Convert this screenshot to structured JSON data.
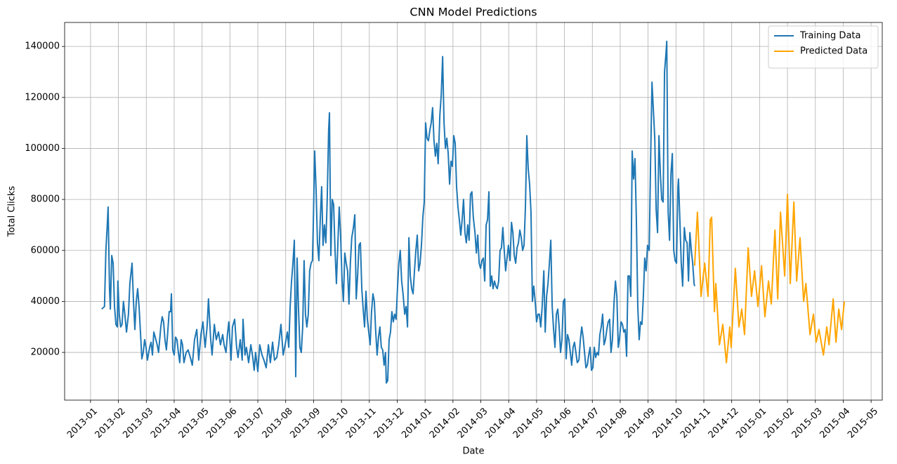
{
  "chart_data": {
    "type": "line",
    "title": "CNN Model Predictions",
    "x_label": "Date",
    "y_label": "Total Clicks",
    "xlim": [
      -0.93,
      28.4
    ],
    "ylim": [
      1300,
      149400
    ],
    "xticks": [
      {
        "value": 0,
        "label": "2013-01"
      },
      {
        "value": 1,
        "label": "2013-02"
      },
      {
        "value": 2,
        "label": "2013-03"
      },
      {
        "value": 3,
        "label": "2013-04"
      },
      {
        "value": 4,
        "label": "2013-05"
      },
      {
        "value": 5,
        "label": "2013-06"
      },
      {
        "value": 6,
        "label": "2013-07"
      },
      {
        "value": 7,
        "label": "2013-08"
      },
      {
        "value": 8,
        "label": "2013-09"
      },
      {
        "value": 9,
        "label": "2013-10"
      },
      {
        "value": 10,
        "label": "2013-11"
      },
      {
        "value": 11,
        "label": "2013-12"
      },
      {
        "value": 12,
        "label": "2014-01"
      },
      {
        "value": 13,
        "label": "2014-02"
      },
      {
        "value": 14,
        "label": "2014-03"
      },
      {
        "value": 15,
        "label": "2014-04"
      },
      {
        "value": 16,
        "label": "2014-05"
      },
      {
        "value": 17,
        "label": "2014-06"
      },
      {
        "value": 18,
        "label": "2014-07"
      },
      {
        "value": 19,
        "label": "2014-08"
      },
      {
        "value": 20,
        "label": "2014-09"
      },
      {
        "value": 21,
        "label": "2014-10"
      },
      {
        "value": 22,
        "label": "2014-11"
      },
      {
        "value": 23,
        "label": "2014-12"
      },
      {
        "value": 24,
        "label": "2015-01"
      },
      {
        "value": 25,
        "label": "2015-02"
      },
      {
        "value": 26,
        "label": "2015-03"
      },
      {
        "value": 27,
        "label": "2015-04"
      },
      {
        "value": 28,
        "label": "2015-05"
      }
    ],
    "yticks": [
      20000,
      40000,
      60000,
      80000,
      100000,
      120000,
      140000
    ],
    "grid": true,
    "legend": "upper right",
    "series": [
      {
        "name": "Training Data",
        "color": "#1f77b4",
        "x": [
          0.4,
          0.5,
          0.55,
          0.6,
          0.63,
          0.68,
          0.71,
          0.76,
          0.81,
          0.86,
          0.91,
          0.96,
          0.98,
          1.03,
          1.08,
          1.13,
          1.18,
          1.23,
          1.29,
          1.36,
          1.41,
          1.49,
          1.54,
          1.59,
          1.64,
          1.69,
          1.74,
          1.79,
          1.84,
          1.89,
          1.94,
          1.99,
          2.04,
          2.12,
          2.17,
          2.22,
          2.27,
          2.32,
          2.39,
          2.44,
          2.52,
          2.57,
          2.62,
          2.67,
          2.72,
          2.77,
          2.82,
          2.87,
          2.9,
          2.95,
          3.0,
          3.05,
          3.1,
          3.15,
          3.2,
          3.25,
          3.3,
          3.35,
          3.43,
          3.5,
          3.58,
          3.65,
          3.73,
          3.81,
          3.88,
          3.96,
          4.03,
          4.11,
          4.18,
          4.23,
          4.31,
          4.36,
          4.44,
          4.51,
          4.59,
          4.66,
          4.74,
          4.79,
          4.86,
          4.91,
          4.96,
          5.04,
          5.09,
          5.17,
          5.24,
          5.29,
          5.37,
          5.44,
          5.47,
          5.54,
          5.59,
          5.67,
          5.75,
          5.82,
          5.87,
          5.92,
          6.0,
          6.07,
          6.15,
          6.22,
          6.3,
          6.38,
          6.45,
          6.53,
          6.6,
          6.68,
          6.75,
          6.83,
          6.91,
          6.98,
          7.06,
          7.11,
          7.16,
          7.21,
          7.26,
          7.31,
          7.36,
          7.41,
          7.46,
          7.51,
          7.56,
          7.61,
          7.66,
          7.71,
          7.76,
          7.81,
          7.86,
          7.91,
          7.96,
          7.99,
          8.04,
          8.09,
          8.14,
          8.19,
          8.24,
          8.29,
          8.34,
          8.39,
          8.44,
          8.49,
          8.54,
          8.57,
          8.62,
          8.67,
          8.72,
          8.77,
          8.82,
          8.87,
          8.92,
          8.97,
          9.02,
          9.07,
          9.12,
          9.17,
          9.22,
          9.27,
          9.32,
          9.37,
          9.43,
          9.48,
          9.53,
          9.58,
          9.63,
          9.68,
          9.73,
          9.78,
          9.83,
          9.88,
          9.93,
          9.98,
          10.03,
          10.08,
          10.13,
          10.18,
          10.23,
          10.28,
          10.33,
          10.38,
          10.43,
          10.48,
          10.53,
          10.58,
          10.61,
          10.66,
          10.71,
          10.76,
          10.81,
          10.86,
          10.91,
          10.96,
          11.01,
          11.06,
          11.11,
          11.16,
          11.21,
          11.27,
          11.32,
          11.37,
          11.42,
          11.47,
          11.52,
          11.57,
          11.62,
          11.67,
          11.72,
          11.77,
          11.82,
          11.87,
          11.92,
          11.97,
          12.02,
          12.07,
          12.12,
          12.17,
          12.22,
          12.27,
          12.32,
          12.37,
          12.42,
          12.47,
          12.53,
          12.58,
          12.63,
          12.68,
          12.73,
          12.78,
          12.83,
          12.88,
          12.93,
          12.98,
          13.03,
          13.08,
          13.13,
          13.18,
          13.23,
          13.28,
          13.33,
          13.38,
          13.43,
          13.48,
          13.53,
          13.58,
          13.63,
          13.68,
          13.73,
          13.79,
          13.84,
          13.89,
          13.94,
          13.99,
          14.04,
          14.09,
          14.14,
          14.19,
          14.24,
          14.29,
          14.34,
          14.39,
          14.44,
          14.49,
          14.54,
          14.59,
          14.64,
          14.69,
          14.74,
          14.79,
          14.84,
          14.89,
          14.94,
          14.99,
          15.05,
          15.1,
          15.15,
          15.2,
          15.25,
          15.3,
          15.35,
          15.4,
          15.45,
          15.5,
          15.55,
          15.6,
          15.65,
          15.7,
          15.75,
          15.8,
          15.85,
          15.9,
          15.95,
          16.0,
          16.05,
          16.1,
          16.15,
          16.2,
          16.26,
          16.31,
          16.36,
          16.41,
          16.46,
          16.51,
          16.56,
          16.61,
          16.66,
          16.71,
          16.76,
          16.81,
          16.86,
          16.91,
          16.96,
          17.01,
          17.06,
          17.11,
          17.16,
          17.21,
          17.26,
          17.31,
          17.36,
          17.41,
          17.46,
          17.52,
          17.57,
          17.62,
          17.67,
          17.72,
          17.77,
          17.82,
          17.87,
          17.92,
          17.97,
          18.02,
          18.07,
          18.12,
          18.17,
          18.22,
          18.27,
          18.32,
          18.37,
          18.42,
          18.47,
          18.52,
          18.57,
          18.62,
          18.67,
          18.72,
          18.78,
          18.83,
          18.88,
          18.93,
          18.98,
          19.03,
          19.08,
          19.13,
          19.18,
          19.23,
          19.28,
          19.33,
          19.38,
          19.43,
          19.48,
          19.53,
          19.58,
          19.63,
          19.68,
          19.73,
          19.78,
          19.83,
          19.88,
          19.93,
          19.98,
          20.04,
          20.09,
          20.14,
          20.19,
          20.24,
          20.29,
          20.34,
          20.39,
          20.44,
          20.49,
          20.54,
          20.59,
          20.64,
          20.67,
          20.72,
          20.77,
          20.82,
          20.87,
          20.92,
          20.97,
          21.02,
          21.07,
          21.09,
          21.14,
          21.19,
          21.24,
          21.3,
          21.35,
          21.4,
          21.45,
          21.5,
          21.55,
          21.6,
          21.65,
          21.67
        ],
        "values": [
          37000,
          38000,
          60000,
          70000,
          77000,
          45000,
          37000,
          58000,
          55000,
          38000,
          31000,
          30000,
          48000,
          35000,
          30000,
          31000,
          40000,
          35000,
          28000,
          35000,
          47000,
          55000,
          40000,
          29000,
          40000,
          45000,
          38000,
          28000,
          17500,
          20000,
          25000,
          22000,
          17000,
          22000,
          24000,
          19000,
          28000,
          26000,
          23000,
          20000,
          30000,
          34000,
          32000,
          25000,
          21000,
          28000,
          36000,
          36000,
          43000,
          21000,
          19000,
          26000,
          25000,
          20000,
          16000,
          25000,
          23000,
          16000,
          20000,
          21000,
          18000,
          15000,
          25000,
          29000,
          17000,
          27000,
          32000,
          22000,
          30000,
          41000,
          25000,
          19000,
          31000,
          25000,
          28000,
          23000,
          27000,
          23000,
          20000,
          27000,
          32000,
          17000,
          30000,
          33000,
          22000,
          18000,
          25000,
          17000,
          33000,
          19000,
          22000,
          16000,
          23000,
          18000,
          13000,
          20000,
          12500,
          23000,
          19000,
          17000,
          14000,
          23000,
          16000,
          24000,
          17000,
          18000,
          23000,
          31000,
          19000,
          23000,
          28000,
          22000,
          38000,
          48000,
          55000,
          64000,
          10500,
          57000,
          37000,
          22000,
          20000,
          30000,
          56000,
          35000,
          30000,
          35000,
          52000,
          55000,
          56000,
          70000,
          99000,
          84000,
          63000,
          56000,
          72000,
          85000,
          62000,
          70000,
          63000,
          80000,
          107000,
          114000,
          58000,
          80000,
          78000,
          60000,
          47000,
          62000,
          77000,
          66000,
          49000,
          40000,
          59000,
          55000,
          52000,
          39000,
          55000,
          65000,
          69000,
          74000,
          41000,
          50000,
          62000,
          63000,
          45000,
          37000,
          30000,
          44000,
          33000,
          28000,
          23000,
          36000,
          43000,
          40000,
          28000,
          19000,
          26000,
          30000,
          22000,
          21000,
          15000,
          20000,
          8000,
          9000,
          25000,
          28000,
          36000,
          32000,
          35000,
          33000,
          45000,
          55000,
          60000,
          48000,
          43000,
          35000,
          38000,
          30000,
          65000,
          50000,
          45000,
          43000,
          52000,
          60000,
          66000,
          52000,
          55000,
          62000,
          73000,
          79000,
          110000,
          104000,
          103000,
          107000,
          110000,
          116000,
          103000,
          97000,
          102000,
          94000,
          113000,
          121000,
          136000,
          110000,
          100000,
          104000,
          98000,
          86000,
          95000,
          93000,
          105000,
          102000,
          85000,
          77000,
          72000,
          66000,
          72000,
          80000,
          67000,
          63000,
          70000,
          64000,
          82000,
          83000,
          73000,
          67000,
          59000,
          66000,
          55000,
          53000,
          56000,
          57000,
          48000,
          70000,
          72000,
          83000,
          46000,
          50000,
          45000,
          48000,
          46000,
          45000,
          48000,
          60000,
          61000,
          69000,
          60000,
          52000,
          57000,
          62000,
          56000,
          71000,
          67000,
          58000,
          55000,
          61000,
          63000,
          68000,
          65000,
          60000,
          62000,
          77000,
          105000,
          92000,
          86000,
          75000,
          40000,
          46000,
          40000,
          32000,
          35000,
          35000,
          30000,
          38000,
          52000,
          28000,
          42000,
          47000,
          55000,
          64000,
          38000,
          29000,
          22000,
          35000,
          37000,
          30000,
          20000,
          25000,
          40000,
          41000,
          17500,
          27000,
          25000,
          20000,
          15000,
          22000,
          24000,
          20000,
          16000,
          17000,
          25000,
          30000,
          26000,
          20000,
          14000,
          15000,
          19000,
          22000,
          13000,
          14000,
          22000,
          18000,
          20000,
          19000,
          27000,
          30000,
          35000,
          23000,
          25000,
          29000,
          32000,
          33000,
          20000,
          25000,
          40000,
          48000,
          42000,
          22000,
          26000,
          32000,
          31000,
          28000,
          29000,
          18500,
          50000,
          50000,
          42000,
          99000,
          88000,
          96000,
          72000,
          38000,
          25000,
          32000,
          31000,
          42000,
          57000,
          52000,
          62000,
          60000,
          95000,
          126000,
          115000,
          104000,
          76000,
          67000,
          105000,
          90000,
          80000,
          79000,
          130000,
          137000,
          142000,
          75000,
          64000,
          90000,
          98000,
          60000,
          56000,
          55000,
          85000,
          88000,
          72000,
          55000,
          46000,
          69000,
          64000,
          63000,
          48000,
          67000,
          60000,
          55000,
          47000,
          46000
        ]
      },
      {
        "name": "Predicted Data",
        "color": "#ffa500",
        "x": [
          21.67,
          21.77,
          21.9,
          22.03,
          22.15,
          22.23,
          22.28,
          22.38,
          22.43,
          22.56,
          22.68,
          22.81,
          22.93,
          22.98,
          23.13,
          23.26,
          23.36,
          23.46,
          23.59,
          23.71,
          23.82,
          23.94,
          24.07,
          24.19,
          24.32,
          24.42,
          24.55,
          24.65,
          24.75,
          24.9,
          25.0,
          25.1,
          25.23,
          25.33,
          25.45,
          25.58,
          25.66,
          25.81,
          25.93,
          26.03,
          26.13,
          26.29,
          26.41,
          26.49,
          26.64,
          26.74,
          26.84,
          26.94,
          27.04
        ],
        "values": [
          54000,
          75000,
          42000,
          55000,
          42000,
          72000,
          73000,
          36000,
          47000,
          23000,
          31000,
          16000,
          30000,
          22000,
          53000,
          30000,
          37000,
          27000,
          61000,
          42000,
          52000,
          38000,
          54000,
          34000,
          48000,
          39000,
          68000,
          41000,
          75000,
          50000,
          82000,
          47000,
          79000,
          48000,
          65000,
          40000,
          47000,
          27000,
          35000,
          24000,
          29000,
          19000,
          30000,
          23000,
          41000,
          24000,
          37000,
          29000,
          40000
        ]
      }
    ]
  }
}
